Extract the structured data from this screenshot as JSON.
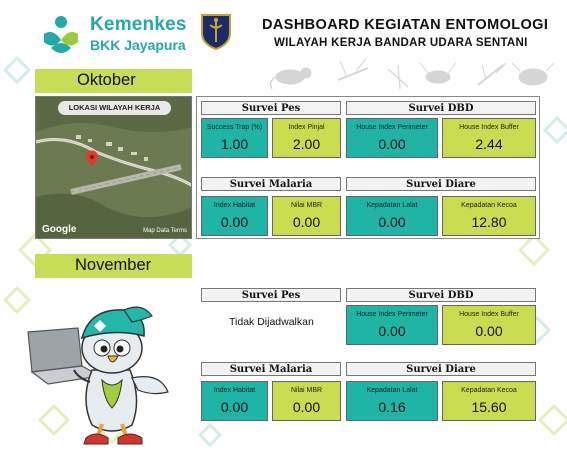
{
  "header": {
    "brand_name": "Kemenkes",
    "brand_unit": "BKK Jayapura",
    "title": "DASHBOARD KEGIATAN ENTOMOLOGI",
    "subtitle": "WILAYAH KERJA BANDAR UDARA SENTANI"
  },
  "october": {
    "month": "Oktober",
    "map": {
      "label": "LOKASI WILAYAH KERJA",
      "provider": "Google",
      "footer": "Map Data   Terms"
    },
    "pes": {
      "title": "Survei Pes",
      "cells": [
        {
          "label": "Success Trap (%)",
          "value": "1.00"
        },
        {
          "label": "Index Pinjal",
          "value": "2.00"
        }
      ]
    },
    "dbd": {
      "title": "Survei DBD",
      "cells": [
        {
          "label": "House Index Perimeter",
          "value": "0.00"
        },
        {
          "label": "House Index Buffer",
          "value": "2.44"
        }
      ]
    },
    "malaria": {
      "title": "Survei Malaria",
      "cells": [
        {
          "label": "Index Habitat",
          "value": "0.00"
        },
        {
          "label": "Nilai MBR",
          "value": "0.00"
        }
      ]
    },
    "diare": {
      "title": "Survei Diare",
      "cells": [
        {
          "label": "Kepadatan Lalat",
          "value": "0.00"
        },
        {
          "label": "Kepadatan Kecoa",
          "value": "12.80"
        }
      ]
    }
  },
  "november": {
    "month": "November",
    "pes": {
      "title": "Survei Pes",
      "status": "Tidak Dijadwalkan"
    },
    "dbd": {
      "title": "Survei DBD",
      "cells": [
        {
          "label": "House Index Perimeter",
          "value": "0.00"
        },
        {
          "label": "House Index Buffer",
          "value": "0.00"
        }
      ]
    },
    "malaria": {
      "title": "Survei Malaria",
      "cells": [
        {
          "label": "Index Habitat",
          "value": "0.00"
        },
        {
          "label": "Nilai MBR",
          "value": "0.00"
        }
      ]
    },
    "diare": {
      "title": "Survei Diare",
      "cells": [
        {
          "label": "Kepadatan Lalat",
          "value": "0.16"
        },
        {
          "label": "Kepadatan Kecoa",
          "value": "15.60"
        }
      ]
    }
  },
  "colors": {
    "teal": "#1fb5a6",
    "lime": "#c9dc4f",
    "brand": "#23a9a6",
    "month_bar": "#c6dd55"
  }
}
